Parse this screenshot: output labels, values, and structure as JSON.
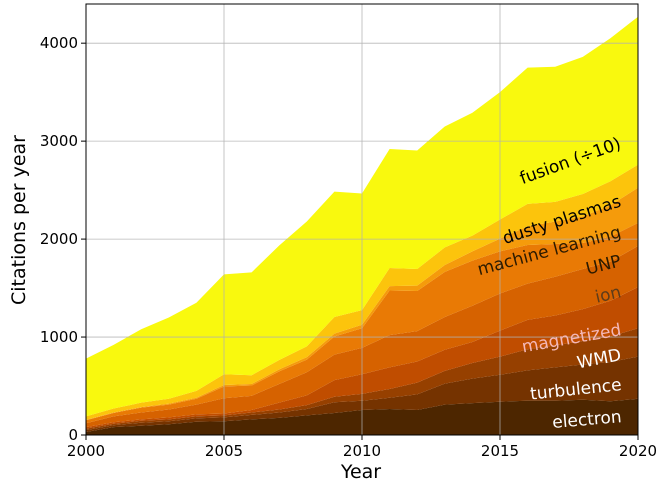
{
  "chart_data": {
    "type": "area",
    "stacked": true,
    "xlabel": "Year",
    "ylabel": "Citations per year",
    "xlim": [
      2000,
      2020
    ],
    "ylim": [
      0,
      4400
    ],
    "x_ticks": [
      "2000",
      "2005",
      "2010",
      "2015",
      "2020"
    ],
    "y_ticks": [
      "0",
      "1000",
      "2000",
      "3000",
      "4000"
    ],
    "grid": true,
    "legend": "inline labels",
    "x": [
      2000,
      2001,
      2002,
      2003,
      2004,
      2005,
      2006,
      2007,
      2008,
      2009,
      2010,
      2011,
      2012,
      2013,
      2014,
      2015,
      2016,
      2017,
      2018,
      2019,
      2020
    ],
    "series": [
      {
        "name": "electron",
        "color": "#4d2600",
        "label_color": "#ffffff",
        "values": [
          30,
          80,
          95,
          110,
          135,
          140,
          160,
          175,
          200,
          225,
          255,
          265,
          255,
          310,
          325,
          340,
          350,
          350,
          360,
          345,
          370
        ]
      },
      {
        "name": "turbulence",
        "color": "#753300",
        "label_color": "#ffffff",
        "values": [
          20,
          20,
          30,
          30,
          35,
          40,
          45,
          55,
          65,
          110,
          95,
          115,
          160,
          215,
          250,
          275,
          310,
          340,
          360,
          400,
          430
        ]
      },
      {
        "name": "WMD",
        "color": "#964000",
        "label_color": "#ffffff",
        "values": [
          15,
          15,
          20,
          20,
          20,
          20,
          25,
          30,
          40,
          55,
          70,
          90,
          120,
          130,
          160,
          185,
          215,
          225,
          240,
          260,
          290
        ]
      },
      {
        "name": "magnetized",
        "color": "#c04d00",
        "label_color": "#f4b8b8",
        "values": [
          15,
          15,
          15,
          20,
          20,
          20,
          25,
          70,
          100,
          170,
          200,
          220,
          215,
          215,
          215,
          265,
          300,
          305,
          325,
          365,
          420
        ]
      },
      {
        "name": "ion",
        "color": "#d66200",
        "label_color": "#5e3c1a",
        "values": [
          40,
          60,
          70,
          80,
          100,
          155,
          145,
          190,
          235,
          260,
          270,
          330,
          310,
          335,
          370,
          380,
          370,
          395,
          410,
          400,
          420
        ]
      },
      {
        "name": "UNP",
        "color": "#e97a05",
        "label_color": "#2b1a00",
        "values": [
          30,
          35,
          50,
          50,
          60,
          120,
          105,
          130,
          130,
          185,
          200,
          455,
          410,
          460,
          460,
          430,
          395,
          335,
          265,
          255,
          235
        ]
      },
      {
        "name": "machine learning",
        "color": "#f59b0b",
        "label_color": "#2b1a00",
        "values": [
          5,
          5,
          5,
          10,
          10,
          15,
          15,
          20,
          25,
          30,
          35,
          45,
          55,
          70,
          95,
          130,
          190,
          230,
          270,
          320,
          360
        ]
      },
      {
        "name": "dusty plasmas",
        "color": "#fcc40c",
        "label_color": "#000000",
        "values": [
          35,
          40,
          45,
          50,
          70,
          110,
          90,
          95,
          110,
          170,
          150,
          185,
          170,
          180,
          160,
          195,
          230,
          200,
          230,
          245,
          235
        ]
      },
      {
        "name": "fusion (÷10)",
        "color": "#f9f90e",
        "label_color": "#000000",
        "values": [
          590,
          650,
          750,
          830,
          900,
          1020,
          1050,
          1170,
          1275,
          1280,
          1190,
          1215,
          1210,
          1235,
          1255,
          1300,
          1390,
          1380,
          1400,
          1460,
          1510
        ]
      }
    ]
  }
}
